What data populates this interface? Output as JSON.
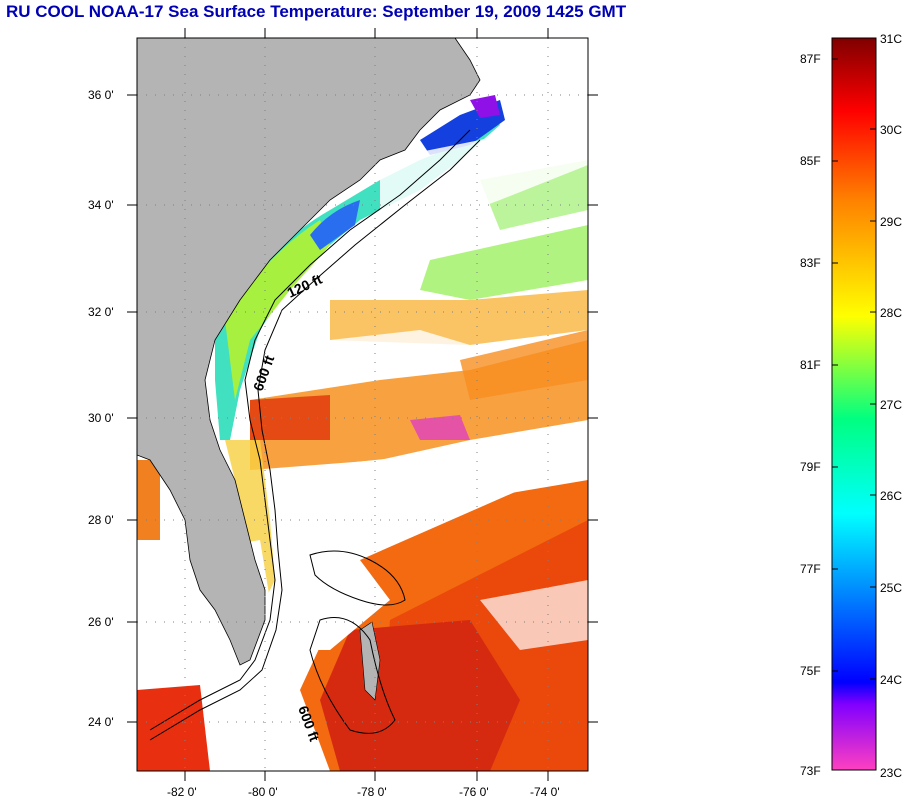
{
  "title": "RU COOL  NOAA-17  Sea Surface Temperature:  September 19, 2009 1425 GMT",
  "map": {
    "lat_ticks": [
      "36 0'",
      "34 0'",
      "32 0'",
      "30 0'",
      "28 0'",
      "26 0'",
      "24 0'"
    ],
    "lon_ticks": [
      "-82 0'",
      "-80 0'",
      "-78 0'",
      "-76 0'",
      "-74 0'"
    ],
    "contours": [
      "120 ft",
      "600 ft",
      "600 ft"
    ]
  },
  "colorbar": {
    "fahrenheit": [
      "87F",
      "85F",
      "83F",
      "81F",
      "79F",
      "77F",
      "75F",
      "73F"
    ],
    "celsius": [
      "31C",
      "30C",
      "29C",
      "28C",
      "27C",
      "26C",
      "25C",
      "24C",
      "23C"
    ],
    "colors": [
      "#ff40c0",
      "#8000ff",
      "#0000ff",
      "#00ffff",
      "#00ff80",
      "#ffff00",
      "#ff8000",
      "#ff0000",
      "#800000"
    ]
  }
}
